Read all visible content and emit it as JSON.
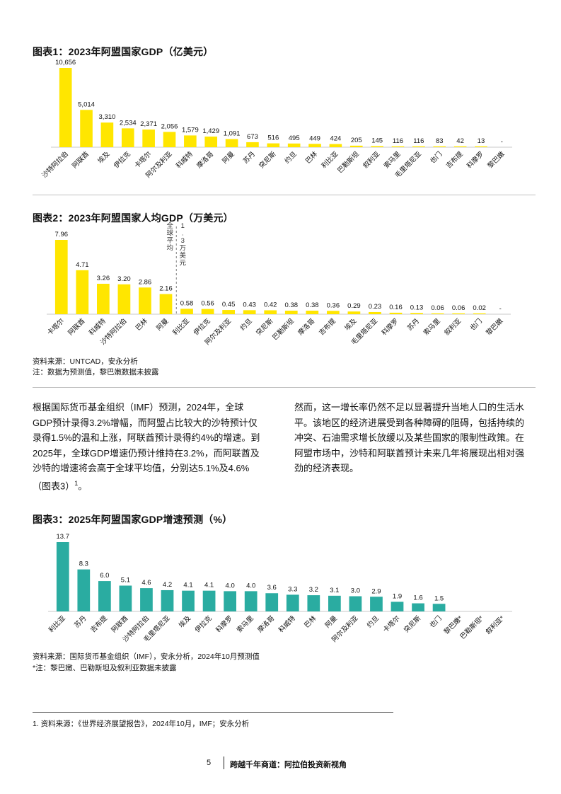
{
  "chart_data": [
    {
      "id": "c1",
      "type": "bar",
      "title": "图表1：2023年阿盟国家GDP（亿美元）",
      "color": "#ffe600",
      "categories": [
        "沙特阿拉伯",
        "阿联酋",
        "埃及",
        "伊拉克",
        "卡塔尔",
        "阿尔及利亚",
        "科威特",
        "摩洛哥",
        "阿曼",
        "苏丹",
        "突尼斯",
        "约旦",
        "巴林",
        "利比亚",
        "巴勒斯坦",
        "叙利亚",
        "索马里",
        "毛里塔尼亚",
        "也门",
        "吉布提",
        "科摩罗",
        "黎巴嫩"
      ],
      "labels": [
        "10,656",
        "5,014",
        "3,310",
        "2,534",
        "2,371",
        "2,056",
        "1,579",
        "1,429",
        "1,091",
        "673",
        "516",
        "495",
        "449",
        "424",
        "205",
        "145",
        "116",
        "116",
        "83",
        "42",
        "13",
        "-"
      ],
      "values": [
        10656,
        5014,
        3310,
        2534,
        2371,
        2056,
        1579,
        1429,
        1091,
        673,
        516,
        495,
        449,
        424,
        205,
        145,
        116,
        116,
        83,
        42,
        13,
        null
      ],
      "ylim": [
        0,
        10656
      ]
    },
    {
      "id": "c2",
      "type": "bar",
      "title": "图表2：2023年阿盟国家人均GDP（万美元）",
      "color": "#ffe600",
      "categories": [
        "卡塔尔",
        "阿联酋",
        "科威特",
        "沙特阿拉伯",
        "巴林",
        "阿曼",
        "利比亚",
        "伊拉克",
        "阿尔及利亚",
        "约旦",
        "突尼斯",
        "巴勒斯坦",
        "摩洛哥",
        "吉布提",
        "埃及",
        "毛里塔尼亚",
        "科摩罗",
        "苏丹",
        "索马里",
        "叙利亚",
        "也门",
        "黎巴嫩"
      ],
      "labels": [
        "7.96",
        "4.71",
        "3.26",
        "3.20",
        "2.86",
        "2.16",
        "0.58",
        "0.56",
        "0.45",
        "0.43",
        "0.42",
        "0.38",
        "0.38",
        "0.36",
        "0.29",
        "0.23",
        "0.16",
        "0.13",
        "0.06",
        "0.06",
        "0.02",
        "-"
      ],
      "values": [
        7.96,
        4.71,
        3.26,
        3.2,
        2.86,
        2.16,
        0.58,
        0.56,
        0.45,
        0.43,
        0.42,
        0.38,
        0.38,
        0.36,
        0.29,
        0.23,
        0.16,
        0.13,
        0.06,
        0.06,
        0.02,
        null
      ],
      "ylim": [
        0,
        7.96
      ],
      "annotation": {
        "left_text": "全球平均",
        "right_text": "1.3万美元",
        "after_index": 5
      }
    },
    {
      "id": "c3",
      "type": "bar",
      "title": "图表3：2025年阿盟国家GDP增速预测（%）",
      "color": "#2aaca1",
      "categories": [
        "利比亚",
        "苏丹",
        "吉布提",
        "阿联酋",
        "沙特阿拉伯",
        "毛里塔尼亚",
        "埃及",
        "伊拉克",
        "科摩罗",
        "索马里",
        "摩洛哥",
        "科威特",
        "巴林",
        "阿曼",
        "阿尔及利亚",
        "约旦",
        "卡塔尔",
        "突尼斯",
        "也门",
        "黎巴嫩*",
        "巴勒斯坦*",
        "叙利亚*"
      ],
      "labels": [
        "13.7",
        "8.3",
        "6.0",
        "5.1",
        "4.6",
        "4.2",
        "4.1",
        "4.1",
        "4.0",
        "4.0",
        "3.6",
        "3.3",
        "3.2",
        "3.1",
        "3.0",
        "2.9",
        "1.9",
        "1.6",
        "1.5",
        "",
        "",
        ""
      ],
      "values": [
        13.7,
        8.3,
        6.0,
        5.1,
        4.6,
        4.2,
        4.1,
        4.1,
        4.0,
        4.0,
        3.6,
        3.3,
        3.2,
        3.1,
        3.0,
        2.9,
        1.9,
        1.6,
        1.5,
        null,
        null,
        null
      ],
      "ylim": [
        0,
        13.7
      ]
    }
  ],
  "notes": {
    "source2": "资料来源：UNTCAD，安永分析",
    "note2": "注：数据为预测值，黎巴嫩数据未披露",
    "source3": "资料来源：国际货币基金组织（IMF），安永分析，2024年10月预测值",
    "note3": "*注：黎巴嫩、巴勒斯坦及叙利亚数据未披露",
    "footnote": "1.   资料来源：《世界经济展望报告》，2024年10月，IMF；安永分析"
  },
  "body": {
    "left": "根据国际货币基金组织（IMF）预测，2024年，全球GDP预计录得3.2%增幅，而阿盟占比较大的沙特预计仅录得1.5%的温和上涨，阿联酋预计录得约4%的增速。到2025年，全球GDP增速仍预计维持在3.2%，而阿联酋及沙特的增速将会高于全球平均值，分别达5.1%及4.6%（图表3）",
    "left_sup": "1",
    "left_end": "。",
    "right": "然而，这一增长率仍然不足以显著提升当地人口的生活水平。该地区的经济进展受到各种障碍的阻碍，包括持续的冲突、石油需求增长放缓以及某些国家的限制性政策。在阿盟市场中，沙特和阿联酋预计未来几年将展现出相对强劲的经济表现。"
  },
  "footer": {
    "page": "5",
    "doc": "跨越千年商道：阿拉伯投资新视角"
  }
}
